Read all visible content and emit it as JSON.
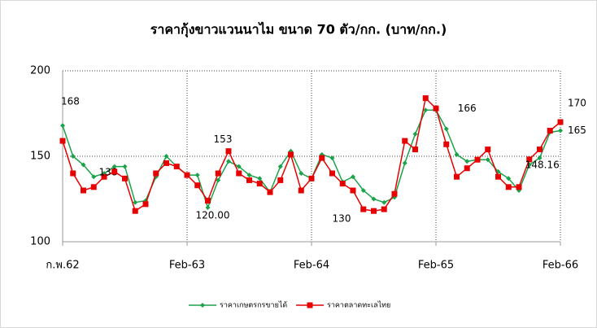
{
  "chart_data": {
    "type": "line",
    "title": "ราคากุ้งขาวแวนนาไม ขนาด 70 ตัว/กก. (บาท/กก.)",
    "categories": [
      "ก.พ.62",
      null,
      null,
      null,
      null,
      null,
      null,
      null,
      null,
      null,
      null,
      null,
      "Feb-63",
      null,
      null,
      null,
      null,
      null,
      null,
      null,
      null,
      null,
      null,
      null,
      "Feb-64",
      null,
      null,
      null,
      null,
      null,
      null,
      null,
      null,
      null,
      null,
      null,
      "Feb-65",
      null,
      null,
      null,
      null,
      null,
      null,
      null,
      null,
      null,
      null,
      null,
      "Feb-66"
    ],
    "series": [
      {
        "name": "ราคาเกษตรกรขายได้",
        "color": "#1aa34a",
        "marker": "diamond",
        "values": [
          168,
          150,
          145,
          138,
          140,
          144,
          144,
          123,
          124,
          138,
          150,
          144,
          139,
          139,
          120,
          136,
          147,
          144,
          139,
          137,
          129,
          144,
          153,
          140,
          137,
          151,
          149,
          135,
          138,
          130,
          125,
          123,
          126,
          146,
          163,
          177,
          177,
          166,
          151,
          147,
          148,
          148,
          141,
          137,
          130,
          145,
          149,
          164,
          165
        ],
        "value_labels": [
          "168",
          null,
          null,
          null,
          null,
          null,
          null,
          null,
          null,
          null,
          null,
          null,
          null,
          null,
          "120.00",
          null,
          null,
          null,
          null,
          null,
          null,
          null,
          null,
          null,
          null,
          null,
          null,
          null,
          null,
          null,
          null,
          null,
          null,
          null,
          null,
          null,
          null,
          "166",
          null,
          null,
          null,
          null,
          null,
          null,
          null,
          null,
          null,
          null,
          "165"
        ]
      },
      {
        "name": "ราคาตลาดทะเลไทย",
        "color": "#e60000",
        "marker": "square",
        "values": [
          159,
          140,
          130,
          132,
          138,
          141,
          137,
          118,
          122,
          140,
          146,
          144,
          139,
          133,
          124,
          140,
          153,
          140,
          136,
          134,
          129,
          136,
          151,
          130,
          137,
          149,
          140,
          134,
          130,
          119,
          118,
          119,
          128,
          159,
          154,
          184,
          178,
          157,
          138,
          143,
          148,
          154,
          138,
          132,
          132,
          148.16,
          154,
          165,
          170
        ],
        "value_labels": [
          null,
          null,
          null,
          null,
          "138",
          null,
          null,
          null,
          null,
          null,
          null,
          null,
          null,
          null,
          null,
          null,
          "153",
          null,
          null,
          null,
          null,
          null,
          null,
          null,
          null,
          null,
          null,
          null,
          "130",
          null,
          null,
          null,
          null,
          null,
          null,
          null,
          null,
          null,
          null,
          null,
          null,
          null,
          null,
          null,
          null,
          "148.16",
          null,
          null,
          "170"
        ]
      }
    ],
    "ylim": [
      100,
      200
    ],
    "yticks": [
      100,
      150,
      200
    ],
    "grid": true,
    "legend": "bottom"
  }
}
